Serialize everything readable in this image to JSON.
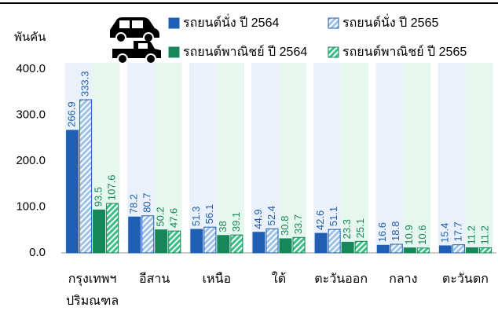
{
  "chart_data": {
    "type": "bar",
    "y_label": "พันคัน",
    "categories": [
      "กรุงเทพฯ ปริมณฑล",
      "อีสาน",
      "เหนือ",
      "ใต้",
      "ตะวันออก",
      "กลาง",
      "ตะวันตก"
    ],
    "series": [
      {
        "name": "รถยนต์นั่ง ปี 2564",
        "color": "#1f5fb4",
        "pattern": "solid",
        "values": [
          266.9,
          78.2,
          51.3,
          44.9,
          42.6,
          16.6,
          15.4
        ]
      },
      {
        "name": "รถยนต์นั่ง ปี 2565",
        "color": "#1f5fb4",
        "pattern": "hatch",
        "values": [
          333.3,
          80.7,
          56.1,
          52.4,
          51.1,
          18.8,
          17.7
        ]
      },
      {
        "name": "รถยนต์พาณิชย์ ปี 2564",
        "color": "#17875a",
        "pattern": "solid",
        "values": [
          93.5,
          50.2,
          38.0,
          30.8,
          23.3,
          10.9,
          11.2
        ]
      },
      {
        "name": "รถยนต์พาณิชย์ ปี 2565",
        "color": "#17875a",
        "pattern": "hatch",
        "values": [
          107.6,
          47.6,
          39.1,
          33.7,
          25.1,
          10.6,
          11.2
        ],
        "value_labels": [
          "107.6",
          "47.6",
          "39.1",
          "33.7",
          "25.1",
          "10.6",
          "11.2"
        ]
      }
    ],
    "value_labels_extra": null,
    "ylim": [
      0,
      400
    ],
    "yticks": [
      {
        "value": 0,
        "label": "0.0"
      },
      {
        "value": 100,
        "label": "100.0"
      },
      {
        "value": 200,
        "label": "200.0"
      },
      {
        "value": 300,
        "label": "300.0"
      },
      {
        "value": 400,
        "label": "400.0"
      }
    ]
  }
}
